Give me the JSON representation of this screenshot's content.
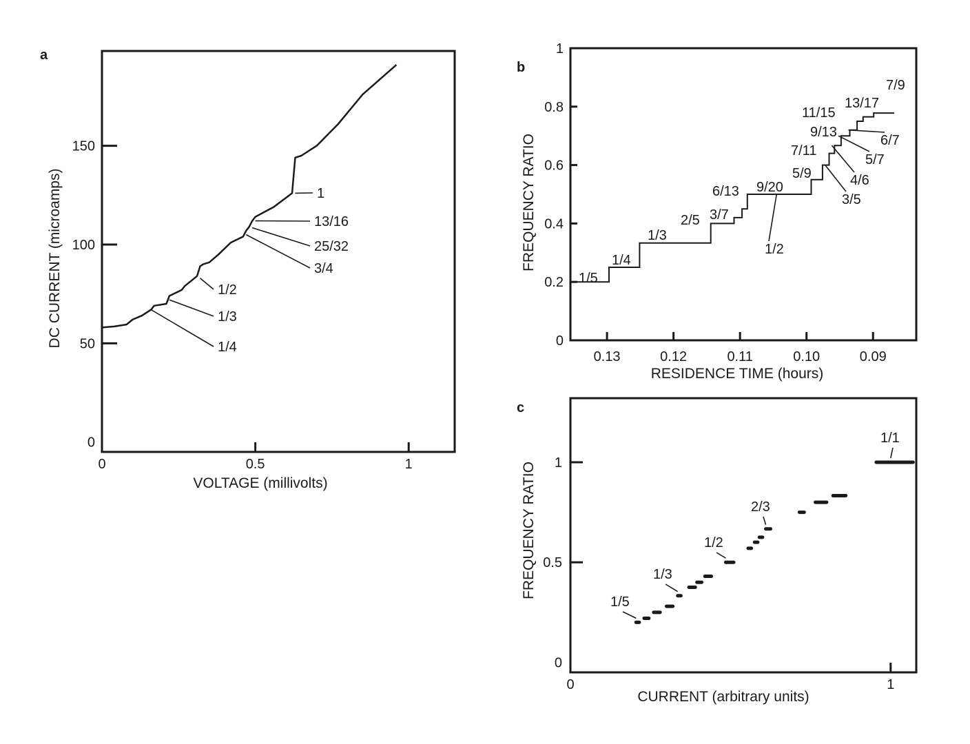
{
  "chart_data": [
    {
      "panel": "a",
      "type": "line",
      "xlabel": "VOLTAGE (millivolts)",
      "ylabel": "DC CURRENT (microamps)",
      "xlim": [
        0,
        1.15
      ],
      "ylim": [
        -5,
        198
      ],
      "xticks": [
        0,
        0.5,
        1
      ],
      "xtick_labels": [
        "0",
        "0.5",
        "1"
      ],
      "yticks": [
        0,
        50,
        100,
        150
      ],
      "ytick_labels": [
        "0",
        "50",
        "100",
        "150"
      ],
      "grid": false,
      "x": [
        0,
        0.04,
        0.08,
        0.1,
        0.13,
        0.16,
        0.17,
        0.21,
        0.22,
        0.26,
        0.27,
        0.31,
        0.32,
        0.33,
        0.35,
        0.38,
        0.42,
        0.46,
        0.47,
        0.48,
        0.49,
        0.5,
        0.56,
        0.62,
        0.63,
        0.65,
        0.7,
        0.77,
        0.85,
        0.96
      ],
      "y": [
        58,
        58.5,
        59.5,
        62,
        64,
        67,
        69,
        70,
        74,
        77,
        79,
        84,
        89,
        90,
        91,
        95,
        101,
        104,
        107,
        109,
        112,
        114,
        119,
        126,
        144,
        145,
        150,
        161,
        176,
        191
      ],
      "annotations": [
        {
          "label": "1",
          "x": 0.63,
          "y": 126
        },
        {
          "label": "13/16",
          "x": 0.5,
          "y": 112
        },
        {
          "label": "25/32",
          "x": 0.49,
          "y": 108.5
        },
        {
          "label": "3/4",
          "x": 0.47,
          "y": 105
        },
        {
          "label": "1/2",
          "x": 0.32,
          "y": 83
        },
        {
          "label": "1/3",
          "x": 0.22,
          "y": 72
        },
        {
          "label": "1/4",
          "x": 0.16,
          "y": 67
        }
      ]
    },
    {
      "panel": "b",
      "type": "line",
      "xlabel": "RESIDENCE TIME (hours)",
      "ylabel": "FREQUENCY RATIO",
      "xlim": [
        0.1355,
        0.0835
      ],
      "ylim": [
        0,
        1
      ],
      "xticks": [
        0.13,
        0.12,
        0.11,
        0.1,
        0.09
      ],
      "xtick_labels": [
        "0.13",
        "0.12",
        "0.11",
        "0.10",
        "0.09"
      ],
      "yticks": [
        0,
        0.2,
        0.4,
        0.6,
        0.8,
        1
      ],
      "ytick_labels": [
        "0",
        "0.2",
        "0.4",
        "0.6",
        "0.8",
        "1"
      ],
      "grid": false,
      "x": [
        0.1355,
        0.1297,
        0.1297,
        0.1251,
        0.1251,
        0.1144,
        0.1144,
        0.1109,
        0.1109,
        0.1097,
        0.1097,
        0.1089,
        0.1089,
        0.0993,
        0.0993,
        0.0976,
        0.0976,
        0.0966,
        0.0966,
        0.0958,
        0.0958,
        0.0948,
        0.0948,
        0.0935,
        0.0935,
        0.0924,
        0.0924,
        0.0915,
        0.0915,
        0.0899,
        0.0899,
        0.0868
      ],
      "y": [
        0.2,
        0.2,
        0.25,
        0.25,
        0.333,
        0.333,
        0.4,
        0.4,
        0.42,
        0.42,
        0.45,
        0.45,
        0.5,
        0.5,
        0.55,
        0.55,
        0.6,
        0.6,
        0.64,
        0.64,
        0.667,
        0.667,
        0.7,
        0.7,
        0.72,
        0.72,
        0.75,
        0.75,
        0.765,
        0.765,
        0.778,
        0.778
      ],
      "annotations": [
        {
          "label": "1/5",
          "x": 0.1325,
          "y": 0.2
        },
        {
          "label": "1/4",
          "x": 0.127,
          "y": 0.25
        },
        {
          "label": "1/3",
          "x": 0.1195,
          "y": 0.333
        },
        {
          "label": "2/5",
          "x": 0.1125,
          "y": 0.4
        },
        {
          "label": "3/7",
          "x": 0.11,
          "y": 0.42
        },
        {
          "label": "6/13",
          "x": 0.1097,
          "y": 0.45
        },
        {
          "label": "9/20",
          "x": 0.1092,
          "y": 0.44
        },
        {
          "label": "1/2",
          "x": 0.1045,
          "y": 0.5
        },
        {
          "label": "5/9",
          "x": 0.0995,
          "y": 0.55
        },
        {
          "label": "3/5",
          "x": 0.0972,
          "y": 0.6
        },
        {
          "label": "7/11",
          "x": 0.0975,
          "y": 0.64
        },
        {
          "label": "4/6",
          "x": 0.0962,
          "y": 0.667
        },
        {
          "label": "9/13",
          "x": 0.097,
          "y": 0.69
        },
        {
          "label": "5/7",
          "x": 0.0952,
          "y": 0.7
        },
        {
          "label": "11/15",
          "x": 0.0955,
          "y": 0.733
        },
        {
          "label": "6/7",
          "x": 0.0937,
          "y": 0.72
        },
        {
          "label": "13/17",
          "x": 0.0925,
          "y": 0.765
        },
        {
          "label": "7/9",
          "x": 0.0905,
          "y": 0.778
        }
      ]
    },
    {
      "panel": "c",
      "type": "scatter",
      "xlabel": "CURRENT (arbitrary units)",
      "ylabel": "FREQUENCY RATIO",
      "xlim": [
        0,
        1.08
      ],
      "ylim": [
        -0.05,
        1.32
      ],
      "xticks": [
        0,
        1
      ],
      "xtick_labels": [
        "0",
        "1"
      ],
      "yticks": [
        0,
        0.5,
        1
      ],
      "ytick_labels": [
        "0",
        "0.5",
        "1"
      ],
      "grid": false,
      "plateaus": [
        {
          "x0": 0.205,
          "x1": 0.215,
          "y": 0.2
        },
        {
          "x0": 0.23,
          "x1": 0.245,
          "y": 0.22
        },
        {
          "x0": 0.26,
          "x1": 0.28,
          "y": 0.25
        },
        {
          "x0": 0.3,
          "x1": 0.32,
          "y": 0.28
        },
        {
          "x0": 0.335,
          "x1": 0.345,
          "y": 0.333
        },
        {
          "x0": 0.37,
          "x1": 0.39,
          "y": 0.375
        },
        {
          "x0": 0.395,
          "x1": 0.41,
          "y": 0.4
        },
        {
          "x0": 0.42,
          "x1": 0.44,
          "y": 0.43
        },
        {
          "x0": 0.485,
          "x1": 0.51,
          "y": 0.5
        },
        {
          "x0": 0.555,
          "x1": 0.565,
          "y": 0.57
        },
        {
          "x0": 0.575,
          "x1": 0.585,
          "y": 0.6
        },
        {
          "x0": 0.59,
          "x1": 0.6,
          "y": 0.625
        },
        {
          "x0": 0.61,
          "x1": 0.625,
          "y": 0.667
        },
        {
          "x0": 0.715,
          "x1": 0.73,
          "y": 0.75
        },
        {
          "x0": 0.765,
          "x1": 0.8,
          "y": 0.8
        },
        {
          "x0": 0.82,
          "x1": 0.86,
          "y": 0.833
        },
        {
          "x0": 0.955,
          "x1": 1.07,
          "y": 1.0
        }
      ],
      "annotations": [
        {
          "label": "1/5",
          "x": 0.205,
          "y": 0.2
        },
        {
          "label": "1/3",
          "x": 0.335,
          "y": 0.333
        },
        {
          "label": "1/2",
          "x": 0.485,
          "y": 0.5
        },
        {
          "label": "2/3",
          "x": 0.61,
          "y": 0.667
        },
        {
          "label": "1/1",
          "x": 1.0,
          "y": 1.0
        }
      ]
    }
  ],
  "panel_letters": [
    "a",
    "b",
    "c"
  ]
}
